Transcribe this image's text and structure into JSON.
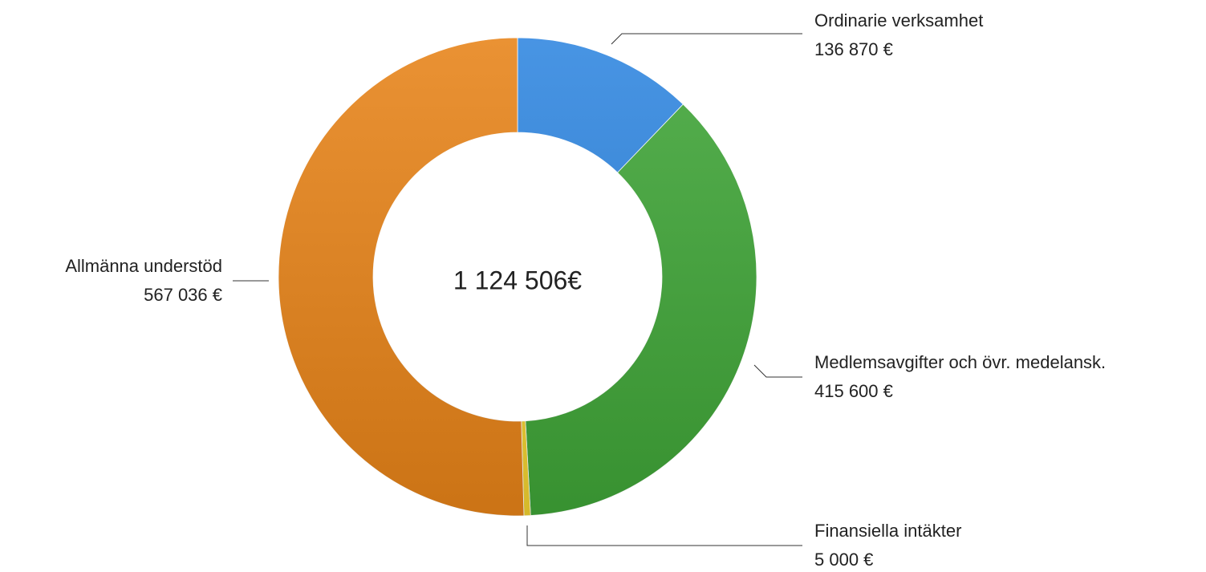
{
  "chart_data": {
    "type": "donut",
    "center_label": "1 124 506€",
    "categories": [
      "Ordinarie verksamhet",
      "Medlemsavgifter och övr. medelansk.",
      "Finansiella intäkter",
      "Allmänna understöd"
    ],
    "values": [
      136870,
      415600,
      5000,
      567036
    ],
    "value_labels": [
      "136 870 €",
      "415 600 €",
      "5 000 €",
      "567 036 €"
    ],
    "colors": [
      "#2f86e0",
      "#3fa537",
      "#f2d230",
      "#e78318"
    ]
  }
}
